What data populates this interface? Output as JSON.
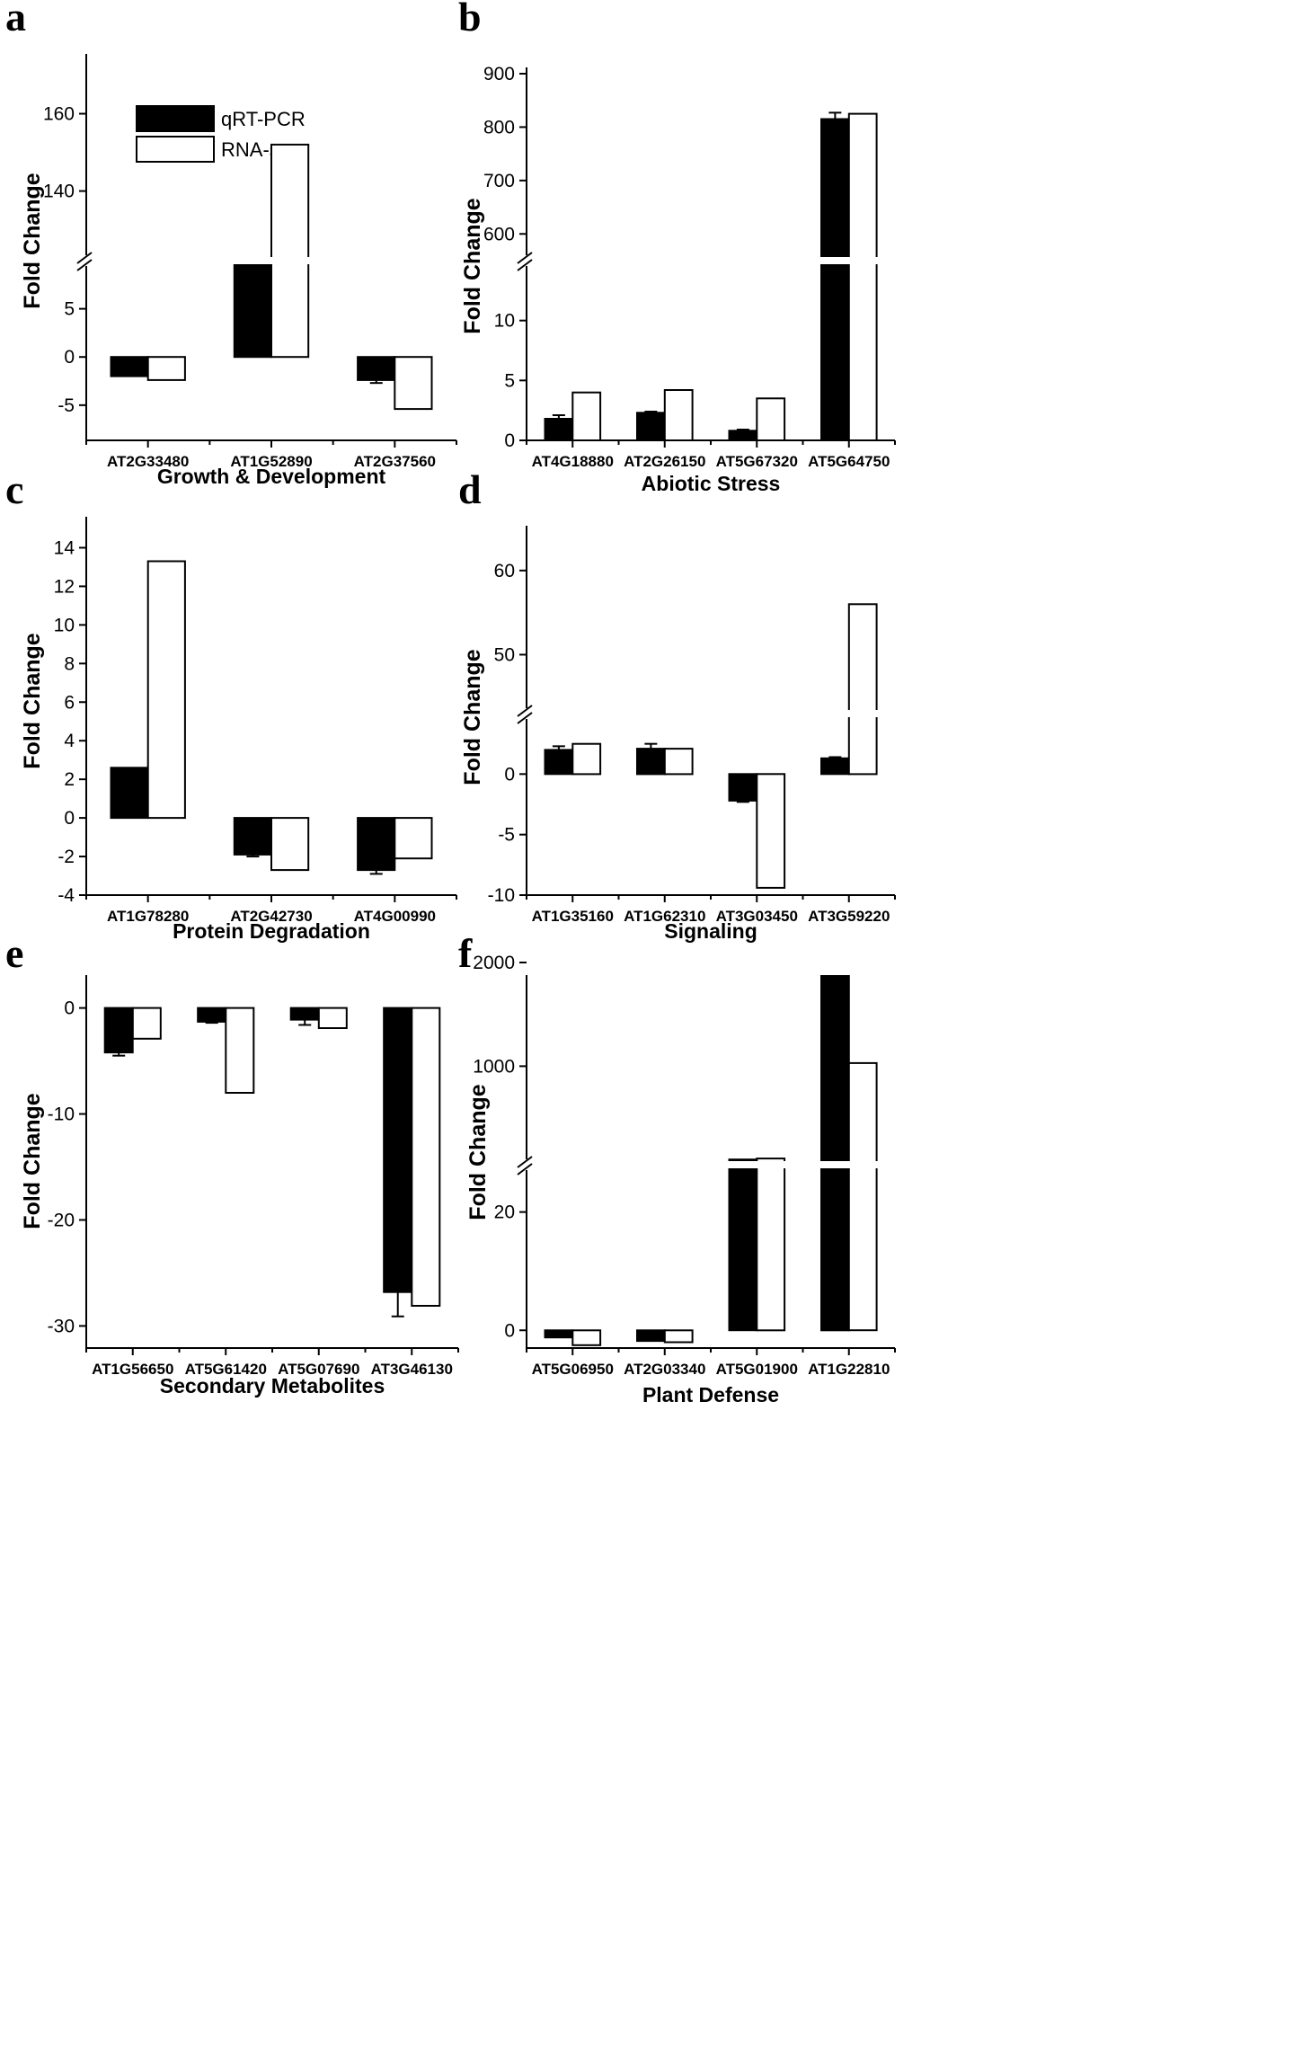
{
  "legend": {
    "qrt": "qRT-PCR",
    "rna": "RNA-seq"
  },
  "chart_data": [
    {
      "letter": "a",
      "type": "bar",
      "title": "",
      "xlabel": "Growth & Development",
      "ylabel": "Fold Change",
      "categories": [
        "AT2G33480",
        "AT1G52890",
        "AT2G37560"
      ],
      "series": [
        {
          "name": "qRT-PCR",
          "values": [
            -2.0,
            22,
            -2.4
          ],
          "errors": [
            0,
            0,
            0.3
          ]
        },
        {
          "name": "RNA-seq",
          "values": [
            -2.4,
            152,
            -5.4
          ],
          "errors": [
            0,
            0,
            0
          ]
        }
      ],
      "segments": [
        {
          "range": [
            -8,
            10
          ],
          "ticks": [
            -5,
            0,
            5
          ]
        },
        {
          "range": [
            122,
            175
          ],
          "ticks": [
            140,
            160
          ]
        }
      ],
      "ylim": [
        -8,
        175
      ]
    },
    {
      "letter": "b",
      "type": "bar",
      "title": "",
      "xlabel": "Abiotic Stress",
      "ylabel": "Fold Change",
      "categories": [
        "AT4G18880",
        "AT2G26150",
        "AT5G67320",
        "AT5G64750"
      ],
      "series": [
        {
          "name": "qRT-PCR",
          "values": [
            1.8,
            2.3,
            0.8,
            815
          ],
          "errors": [
            0.3,
            0.1,
            0.1,
            12
          ]
        },
        {
          "name": "RNA-seq",
          "values": [
            4.0,
            4.2,
            3.5,
            825
          ],
          "errors": [
            0,
            0,
            0,
            0
          ]
        }
      ],
      "segments": [
        {
          "range": [
            0,
            15
          ],
          "ticks": [
            0,
            5,
            10
          ]
        },
        {
          "range": [
            550,
            900
          ],
          "ticks": [
            600,
            700,
            800,
            900
          ]
        }
      ],
      "ylim": [
        0,
        900
      ]
    },
    {
      "letter": "c",
      "type": "bar",
      "title": "",
      "xlabel": "Protein Degradation",
      "ylabel": "Fold Change",
      "categories": [
        "AT1G78280",
        "AT2G42730",
        "AT4G00990"
      ],
      "series": [
        {
          "name": "qRT-PCR",
          "values": [
            2.6,
            -1.9,
            -2.7
          ],
          "errors": [
            0,
            0.1,
            0.2
          ]
        },
        {
          "name": "RNA-seq",
          "values": [
            13.3,
            -2.7,
            -2.1
          ],
          "errors": [
            0,
            0,
            0
          ]
        }
      ],
      "segments": [
        {
          "range": [
            -4,
            15
          ],
          "ticks": [
            -4,
            -2,
            0,
            2,
            4,
            6,
            8,
            10,
            12,
            14
          ]
        }
      ],
      "ylim": [
        -4,
        15
      ]
    },
    {
      "letter": "d",
      "type": "bar",
      "title": "",
      "xlabel": "Signaling",
      "ylabel": "Fold Change",
      "categories": [
        "AT1G35160",
        "AT1G62310",
        "AT3G03450",
        "AT3G59220"
      ],
      "series": [
        {
          "name": "qRT-PCR",
          "values": [
            2.0,
            2.1,
            -2.2,
            1.3
          ],
          "errors": [
            0.3,
            0.4,
            0.1,
            0.1
          ]
        },
        {
          "name": "RNA-seq",
          "values": [
            2.5,
            2.1,
            -9.4,
            56
          ],
          "errors": [
            0,
            0,
            0,
            0
          ]
        }
      ],
      "segments": [
        {
          "range": [
            -10,
            5
          ],
          "ticks": [
            -10,
            -5,
            0
          ]
        },
        {
          "range": [
            43,
            65
          ],
          "ticks": [
            50,
            60
          ]
        }
      ],
      "ylim": [
        -10,
        65
      ]
    },
    {
      "letter": "e",
      "type": "bar",
      "title": "",
      "xlabel": "Secondary Metabolites",
      "ylabel": "Fold Change",
      "categories": [
        "AT1G56650",
        "AT5G61420",
        "AT5G07690",
        "AT3G46130"
      ],
      "series": [
        {
          "name": "qRT-PCR",
          "values": [
            -4.2,
            -1.3,
            -1.1,
            -26.8
          ],
          "errors": [
            0.3,
            0.1,
            0.5,
            2.3
          ]
        },
        {
          "name": "RNA-seq",
          "values": [
            -2.9,
            -8.0,
            -1.9,
            -28.1
          ],
          "errors": [
            0,
            0,
            0,
            0
          ]
        }
      ],
      "segments": [
        {
          "range": [
            -32,
            2
          ],
          "ticks": [
            -30,
            -20,
            -10,
            0
          ]
        }
      ],
      "ylim": [
        -32,
        2
      ]
    },
    {
      "letter": "f",
      "type": "bar",
      "title": "",
      "xlabel": "Plant Defense",
      "ylabel": "Fold Change",
      "categories": [
        "AT5G06950",
        "AT2G03340",
        "AT5G01900",
        "AT1G22810"
      ],
      "series": [
        {
          "name": "qRT-PCR",
          "values": [
            -1.2,
            -1.8,
            100,
            1870
          ],
          "errors": [
            0,
            0,
            0,
            0
          ]
        },
        {
          "name": "RNA-seq",
          "values": [
            -2.5,
            -2.0,
            110,
            1030
          ],
          "errors": [
            0,
            0,
            0,
            0
          ]
        }
      ],
      "segments": [
        {
          "range": [
            -3,
            28
          ],
          "ticks": [
            0,
            20
          ]
        },
        {
          "range": [
            50,
            2000
          ],
          "ticks": [
            1000,
            2000
          ]
        }
      ],
      "ylim": [
        -3,
        2000
      ]
    }
  ]
}
